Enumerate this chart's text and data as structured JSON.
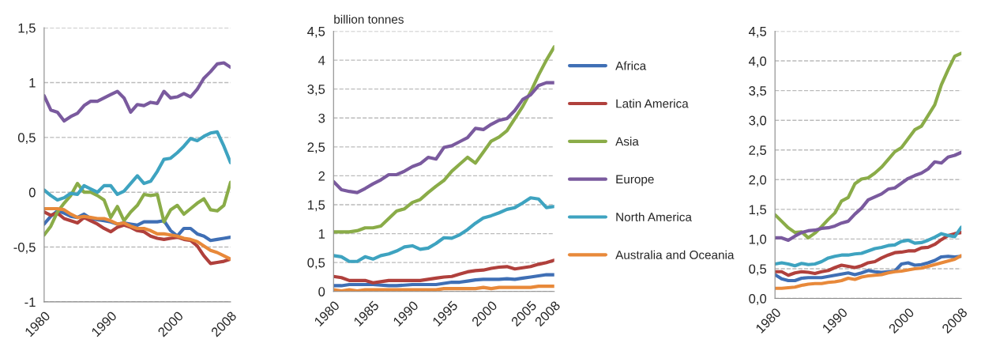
{
  "chart_data": [
    {
      "type": "line",
      "x": [
        1980,
        1981,
        1982,
        1983,
        1984,
        1985,
        1986,
        1987,
        1988,
        1989,
        1990,
        1991,
        1992,
        1993,
        1994,
        1995,
        1996,
        1997,
        1998,
        1999,
        2000,
        2001,
        2002,
        2003,
        2004,
        2005,
        2006,
        2007,
        2008
      ],
      "xlim": [
        1980,
        2008
      ],
      "xticks": [
        1980,
        1990,
        2000,
        2008
      ],
      "ylim": [
        -1,
        1.5
      ],
      "yticks": [
        {
          "value": -1,
          "label": "-1"
        },
        {
          "value": -0.5,
          "label": "-0,5"
        },
        {
          "value": 0,
          "label": "0"
        },
        {
          "value": 0.5,
          "label": "0,5"
        },
        {
          "value": 1,
          "label": "1"
        },
        {
          "value": 1.5,
          "label": "1,5"
        }
      ],
      "grid": "y",
      "line_style": "solid",
      "series": [
        {
          "color": "#3f6fb5",
          "values": [
            -0.29,
            -0.22,
            -0.17,
            -0.19,
            -0.22,
            -0.23,
            -0.2,
            -0.24,
            -0.25,
            -0.26,
            -0.27,
            -0.29,
            -0.28,
            -0.29,
            -0.3,
            -0.27,
            -0.27,
            -0.27,
            -0.26,
            -0.35,
            -0.4,
            -0.33,
            -0.33,
            -0.38,
            -0.4,
            -0.44,
            -0.43,
            -0.42,
            -0.41
          ]
        },
        {
          "color": "#b0403c",
          "values": [
            -0.18,
            -0.21,
            -0.19,
            -0.24,
            -0.26,
            -0.28,
            -0.23,
            -0.26,
            -0.29,
            -0.33,
            -0.36,
            -0.32,
            -0.3,
            -0.32,
            -0.35,
            -0.36,
            -0.4,
            -0.42,
            -0.43,
            -0.42,
            -0.41,
            -0.43,
            -0.44,
            -0.49,
            -0.58,
            -0.65,
            -0.64,
            -0.63,
            -0.61
          ]
        },
        {
          "color": "#8aac48",
          "values": [
            -0.39,
            -0.31,
            -0.18,
            -0.1,
            -0.03,
            0.08,
            0.0,
            0.0,
            -0.03,
            -0.07,
            -0.23,
            -0.13,
            -0.26,
            -0.18,
            -0.12,
            -0.02,
            -0.03,
            -0.02,
            -0.27,
            -0.16,
            -0.12,
            -0.2,
            -0.15,
            -0.1,
            -0.06,
            -0.16,
            -0.17,
            -0.12,
            0.09
          ]
        },
        {
          "color": "#7a5a9e",
          "values": [
            0.88,
            0.75,
            0.73,
            0.65,
            0.69,
            0.72,
            0.79,
            0.83,
            0.83,
            0.86,
            0.89,
            0.92,
            0.86,
            0.73,
            0.8,
            0.79,
            0.82,
            0.81,
            0.92,
            0.86,
            0.87,
            0.9,
            0.87,
            0.94,
            1.04,
            1.1,
            1.17,
            1.18,
            1.14
          ]
        },
        {
          "color": "#3ea3c0",
          "values": [
            0.02,
            -0.03,
            -0.07,
            -0.05,
            -0.01,
            -0.02,
            0.06,
            0.03,
            0.0,
            0.06,
            0.06,
            -0.02,
            0.01,
            0.08,
            0.15,
            0.08,
            0.1,
            0.19,
            0.3,
            0.31,
            0.36,
            0.42,
            0.49,
            0.47,
            0.51,
            0.54,
            0.55,
            0.42,
            0.27
          ]
        },
        {
          "color": "#e8893a",
          "values": [
            -0.15,
            -0.15,
            -0.15,
            -0.16,
            -0.2,
            -0.23,
            -0.22,
            -0.23,
            -0.24,
            -0.24,
            -0.26,
            -0.29,
            -0.28,
            -0.31,
            -0.33,
            -0.33,
            -0.35,
            -0.38,
            -0.38,
            -0.39,
            -0.4,
            -0.42,
            -0.43,
            -0.45,
            -0.49,
            -0.53,
            -0.55,
            -0.58,
            -0.61
          ]
        }
      ]
    },
    {
      "type": "line",
      "ylabel": "billion tonnes",
      "x": [
        1980,
        1981,
        1982,
        1983,
        1984,
        1985,
        1986,
        1987,
        1988,
        1989,
        1990,
        1991,
        1992,
        1993,
        1994,
        1995,
        1996,
        1997,
        1998,
        1999,
        2000,
        2001,
        2002,
        2003,
        2004,
        2005,
        2006,
        2007,
        2008
      ],
      "xlim": [
        1980,
        2008
      ],
      "xticks": [
        1980,
        1985,
        1990,
        1995,
        2000,
        2005,
        2008
      ],
      "ylim": [
        0,
        4.5
      ],
      "yticks": [
        0,
        {
          "value": 0.5,
          "label": "0,5"
        },
        1,
        {
          "value": 1.5,
          "label": "1,5"
        },
        2,
        {
          "value": 2.5,
          "label": "2,5"
        },
        3,
        {
          "value": 3.5,
          "label": "3,5"
        },
        4,
        {
          "value": 4.5,
          "label": "4,5"
        }
      ],
      "grid": "y",
      "legend": "right",
      "line_style": "solid",
      "series": [
        {
          "name": "Africa",
          "color": "#3f6fb5",
          "values": [
            0.1,
            0.1,
            0.12,
            0.12,
            0.12,
            0.12,
            0.11,
            0.1,
            0.1,
            0.11,
            0.12,
            0.12,
            0.12,
            0.12,
            0.14,
            0.16,
            0.16,
            0.18,
            0.2,
            0.21,
            0.21,
            0.21,
            0.22,
            0.21,
            0.23,
            0.25,
            0.27,
            0.29,
            0.29
          ]
        },
        {
          "name": "Latin America",
          "color": "#b0403c",
          "values": [
            0.26,
            0.24,
            0.19,
            0.19,
            0.19,
            0.15,
            0.17,
            0.19,
            0.19,
            0.19,
            0.19,
            0.19,
            0.21,
            0.23,
            0.25,
            0.26,
            0.3,
            0.34,
            0.36,
            0.37,
            0.4,
            0.42,
            0.43,
            0.39,
            0.41,
            0.43,
            0.47,
            0.5,
            0.54
          ]
        },
        {
          "name": "Asia",
          "color": "#8aac48",
          "values": [
            1.03,
            1.03,
            1.03,
            1.05,
            1.1,
            1.1,
            1.13,
            1.26,
            1.39,
            1.43,
            1.54,
            1.59,
            1.71,
            1.82,
            1.92,
            2.08,
            2.2,
            2.32,
            2.22,
            2.41,
            2.6,
            2.67,
            2.78,
            2.99,
            3.2,
            3.45,
            3.74,
            4.0,
            4.23
          ]
        },
        {
          "name": "Europe",
          "color": "#7a5a9e",
          "values": [
            1.9,
            1.76,
            1.73,
            1.71,
            1.78,
            1.86,
            1.93,
            2.02,
            2.02,
            2.08,
            2.16,
            2.21,
            2.32,
            2.29,
            2.49,
            2.52,
            2.59,
            2.66,
            2.82,
            2.8,
            2.89,
            2.96,
            2.99,
            3.13,
            3.32,
            3.4,
            3.56,
            3.61,
            3.61
          ]
        },
        {
          "name": "North America",
          "color": "#3ea3c0",
          "values": [
            0.62,
            0.6,
            0.52,
            0.52,
            0.6,
            0.56,
            0.62,
            0.65,
            0.7,
            0.77,
            0.79,
            0.73,
            0.75,
            0.83,
            0.93,
            0.92,
            0.98,
            1.07,
            1.18,
            1.27,
            1.31,
            1.36,
            1.42,
            1.45,
            1.53,
            1.62,
            1.6,
            1.45,
            1.47
          ]
        },
        {
          "name": "Australia and Oceania",
          "color": "#e8893a",
          "values": [
            0.03,
            0.01,
            0.03,
            0.01,
            0.03,
            0.03,
            0.03,
            0.03,
            0.03,
            0.03,
            0.03,
            0.03,
            0.03,
            0.03,
            0.05,
            0.05,
            0.05,
            0.05,
            0.05,
            0.07,
            0.05,
            0.07,
            0.07,
            0.07,
            0.07,
            0.07,
            0.09,
            0.09,
            0.09
          ]
        }
      ]
    },
    {
      "type": "line",
      "x": [
        1980,
        1981,
        1982,
        1983,
        1984,
        1985,
        1986,
        1987,
        1988,
        1989,
        1990,
        1991,
        1992,
        1993,
        1994,
        1995,
        1996,
        1997,
        1998,
        1999,
        2000,
        2001,
        2002,
        2003,
        2004,
        2005,
        2006,
        2007,
        2008
      ],
      "xlim": [
        1980,
        2008
      ],
      "xticks": [
        1980,
        1990,
        2000,
        2008
      ],
      "ylim": [
        0,
        4.5
      ],
      "yticks": [
        {
          "value": 0,
          "label": "0,0"
        },
        {
          "value": 0.5,
          "label": "0,5"
        },
        {
          "value": 1,
          "label": "1,0"
        },
        {
          "value": 1.5,
          "label": "1,5"
        },
        {
          "value": 2,
          "label": "2,0"
        },
        {
          "value": 2.5,
          "label": "2,5"
        },
        {
          "value": 3,
          "label": "3,0"
        },
        {
          "value": 3.5,
          "label": "3,5"
        },
        {
          "value": 4,
          "label": "4,0"
        },
        {
          "value": 4.5,
          "label": "4,5"
        }
      ],
      "grid": "y",
      "line_style": "solid",
      "series": [
        {
          "color": "#3f6fb5",
          "values": [
            0.4,
            0.33,
            0.3,
            0.3,
            0.34,
            0.35,
            0.35,
            0.35,
            0.37,
            0.39,
            0.41,
            0.43,
            0.4,
            0.43,
            0.47,
            0.45,
            0.44,
            0.45,
            0.46,
            0.58,
            0.6,
            0.56,
            0.57,
            0.6,
            0.64,
            0.7,
            0.71,
            0.7,
            0.71
          ]
        },
        {
          "color": "#b0403c",
          "values": [
            0.45,
            0.45,
            0.39,
            0.43,
            0.45,
            0.44,
            0.42,
            0.45,
            0.47,
            0.52,
            0.56,
            0.54,
            0.52,
            0.55,
            0.6,
            0.62,
            0.68,
            0.73,
            0.77,
            0.78,
            0.8,
            0.8,
            0.85,
            0.86,
            0.91,
            0.99,
            1.06,
            1.09,
            1.11
          ]
        },
        {
          "color": "#8aac48",
          "values": [
            1.41,
            1.3,
            1.19,
            1.11,
            1.12,
            1.02,
            1.1,
            1.21,
            1.33,
            1.44,
            1.64,
            1.7,
            1.93,
            2.01,
            2.03,
            2.11,
            2.21,
            2.34,
            2.47,
            2.54,
            2.69,
            2.84,
            2.9,
            3.08,
            3.26,
            3.6,
            3.85,
            4.08,
            4.13
          ]
        },
        {
          "color": "#7a5a9e",
          "values": [
            1.02,
            1.02,
            0.98,
            1.05,
            1.11,
            1.14,
            1.15,
            1.18,
            1.19,
            1.22,
            1.27,
            1.3,
            1.42,
            1.52,
            1.66,
            1.71,
            1.76,
            1.84,
            1.86,
            1.94,
            2.02,
            2.07,
            2.11,
            2.18,
            2.3,
            2.28,
            2.38,
            2.41,
            2.46
          ]
        },
        {
          "color": "#3ea3c0",
          "values": [
            0.58,
            0.6,
            0.58,
            0.55,
            0.59,
            0.57,
            0.58,
            0.62,
            0.68,
            0.71,
            0.73,
            0.73,
            0.75,
            0.76,
            0.8,
            0.84,
            0.86,
            0.89,
            0.9,
            0.96,
            0.98,
            0.93,
            0.94,
            0.98,
            1.03,
            1.09,
            1.06,
            1.04,
            1.2
          ]
        },
        {
          "color": "#e8893a",
          "values": [
            0.17,
            0.17,
            0.18,
            0.19,
            0.22,
            0.24,
            0.25,
            0.25,
            0.27,
            0.28,
            0.3,
            0.34,
            0.32,
            0.36,
            0.38,
            0.39,
            0.4,
            0.43,
            0.45,
            0.46,
            0.48,
            0.5,
            0.51,
            0.54,
            0.57,
            0.6,
            0.63,
            0.66,
            0.72
          ]
        }
      ]
    }
  ]
}
